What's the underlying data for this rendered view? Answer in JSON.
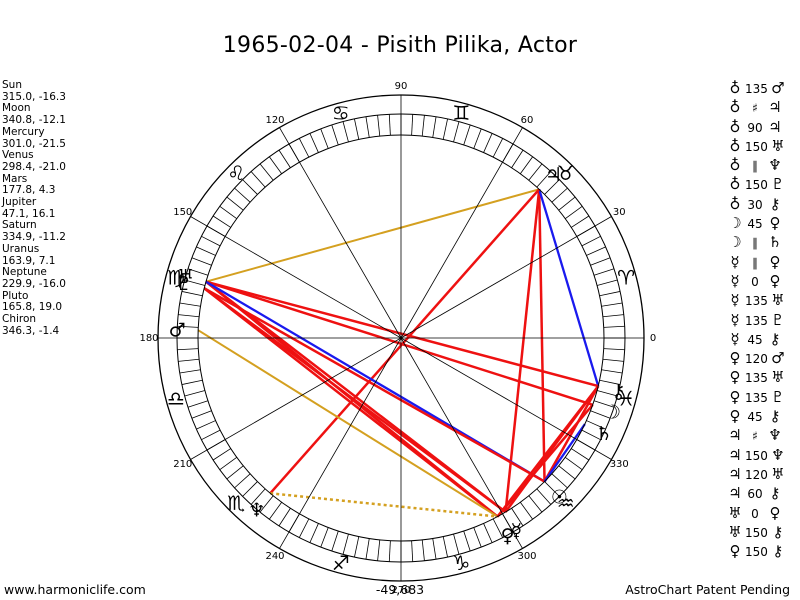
{
  "title": "1965-02-04 - Pisith Pilika, Actor",
  "planets": [
    {
      "name": "Sun",
      "coords": "315.0, -16.3"
    },
    {
      "name": "Moon",
      "coords": "340.8, -12.1"
    },
    {
      "name": "Mercury",
      "coords": "301.0, -21.5"
    },
    {
      "name": "Venus",
      "coords": "298.4, -21.0"
    },
    {
      "name": "Mars",
      "coords": "177.8, 4.3"
    },
    {
      "name": "Jupiter",
      "coords": "47.1, 16.1"
    },
    {
      "name": "Saturn",
      "coords": "334.9, -11.2"
    },
    {
      "name": "Uranus",
      "coords": "163.9, 7.1"
    },
    {
      "name": "Neptune",
      "coords": "229.9, -16.0"
    },
    {
      "name": "Pluto",
      "coords": "165.8, 19.0"
    },
    {
      "name": "Chiron",
      "coords": "346.3, -1.4"
    }
  ],
  "aspects": [
    {
      "p1": "♁",
      "aspect": "135",
      "p2": "♂"
    },
    {
      "p1": "♁",
      "aspect": "♯",
      "p2": "♃"
    },
    {
      "p1": "♁",
      "aspect": "90",
      "p2": "♃"
    },
    {
      "p1": "♁",
      "aspect": "150",
      "p2": "♅"
    },
    {
      "p1": "♁",
      "aspect": "∥",
      "p2": "♆"
    },
    {
      "p1": "♁",
      "aspect": "150",
      "p2": "♇"
    },
    {
      "p1": "♁",
      "aspect": "30",
      "p2": "⚷"
    },
    {
      "p1": "☽",
      "aspect": "45",
      "p2": "♀"
    },
    {
      "p1": "☽",
      "aspect": "∥",
      "p2": "♄"
    },
    {
      "p1": "☿",
      "aspect": "∥",
      "p2": "♀"
    },
    {
      "p1": "☿",
      "aspect": "0",
      "p2": "♀"
    },
    {
      "p1": "☿",
      "aspect": "135",
      "p2": "♅"
    },
    {
      "p1": "☿",
      "aspect": "135",
      "p2": "♇"
    },
    {
      "p1": "☿",
      "aspect": "45",
      "p2": "⚷"
    },
    {
      "p1": "♀",
      "aspect": "120",
      "p2": "♂"
    },
    {
      "p1": "♀",
      "aspect": "135",
      "p2": "♅"
    },
    {
      "p1": "♀",
      "aspect": "135",
      "p2": "♇"
    },
    {
      "p1": "♀",
      "aspect": "45",
      "p2": "⚷"
    },
    {
      "p1": "♃",
      "aspect": "♯",
      "p2": "♆"
    },
    {
      "p1": "♃",
      "aspect": "150",
      "p2": "♆"
    },
    {
      "p1": "♃",
      "aspect": "120",
      "p2": "♅"
    },
    {
      "p1": "♃",
      "aspect": "60",
      "p2": "⚷"
    },
    {
      "p1": "♅",
      "aspect": "0",
      "p2": "♀"
    },
    {
      "p1": "♅",
      "aspect": "150",
      "p2": "⚷"
    },
    {
      "p1": "♀",
      "aspect": "150",
      "p2": "⚷"
    }
  ],
  "footer": {
    "left": "www.harmoniclife.com",
    "center": "-49,683",
    "right": "AstroChart Patent Pending"
  },
  "colors": {
    "hard_aspect": "#ee1111",
    "trine_aspect": "#1a1aee",
    "minor_aspect": "#d4a020",
    "axis": "#000000"
  },
  "chart_data": {
    "type": "scatter",
    "subtype": "astrological wheel",
    "degree_labels": [
      "0",
      "30",
      "60",
      "90",
      "120",
      "150",
      "180",
      "210",
      "240",
      "270",
      "300",
      "330"
    ],
    "signs": [
      {
        "name": "Aries",
        "glyph": "♈"
      },
      {
        "name": "Taurus",
        "glyph": "♉"
      },
      {
        "name": "Gemini",
        "glyph": "♊"
      },
      {
        "name": "Cancer",
        "glyph": "♋"
      },
      {
        "name": "Leo",
        "glyph": "♌"
      },
      {
        "name": "Virgo",
        "glyph": "♍"
      },
      {
        "name": "Libra",
        "glyph": "♎"
      },
      {
        "name": "Scorpio",
        "glyph": "♏"
      },
      {
        "name": "Sagittarius",
        "glyph": "♐"
      },
      {
        "name": "Capricorn",
        "glyph": "♑"
      },
      {
        "name": "Aquarius",
        "glyph": "♒"
      },
      {
        "name": "Pisces",
        "glyph": "♓"
      }
    ],
    "bodies": [
      {
        "name": "Sun",
        "glyph": "☉",
        "lon": 315.0
      },
      {
        "name": "Moon",
        "glyph": "☽",
        "lon": 340.8
      },
      {
        "name": "Mercury",
        "glyph": "☿",
        "lon": 301.0
      },
      {
        "name": "Venus",
        "glyph": "♀",
        "lon": 298.4
      },
      {
        "name": "Mars",
        "glyph": "♂",
        "lon": 177.8
      },
      {
        "name": "Jupiter",
        "glyph": "♃",
        "lon": 47.1
      },
      {
        "name": "Saturn",
        "glyph": "♄",
        "lon": 334.9
      },
      {
        "name": "Uranus",
        "glyph": "♅",
        "lon": 163.9
      },
      {
        "name": "Neptune",
        "glyph": "♆",
        "lon": 229.9
      },
      {
        "name": "Pluto",
        "glyph": "♇",
        "lon": 165.8
      },
      {
        "name": "Chiron",
        "glyph": "⚷",
        "lon": 346.3
      }
    ],
    "aspect_lines": [
      {
        "from": "Jupiter",
        "to": "Uranus",
        "kind": "minor"
      },
      {
        "from": "Jupiter",
        "to": "Sun",
        "kind": "hard"
      },
      {
        "from": "Jupiter",
        "to": "Mercury",
        "kind": "hard"
      },
      {
        "from": "Jupiter",
        "to": "Chiron",
        "kind": "trine"
      },
      {
        "from": "Jupiter",
        "to": "Neptune",
        "kind": "hard"
      },
      {
        "from": "Uranus",
        "to": "Chiron",
        "kind": "hard"
      },
      {
        "from": "Uranus",
        "to": "Moon",
        "kind": "hard"
      },
      {
        "from": "Uranus",
        "to": "Venus",
        "kind": "hard"
      },
      {
        "from": "Uranus",
        "to": "Mercury",
        "kind": "hard"
      },
      {
        "from": "Uranus",
        "to": "Sun",
        "kind": "trine"
      },
      {
        "from": "Pluto",
        "to": "Venus",
        "kind": "hard"
      },
      {
        "from": "Pluto",
        "to": "Mercury",
        "kind": "hard"
      },
      {
        "from": "Pluto",
        "to": "Sun",
        "kind": "hard"
      },
      {
        "from": "Mars",
        "to": "Venus",
        "kind": "minor"
      },
      {
        "from": "Neptune",
        "to": "Venus",
        "kind": "minor-dotted"
      },
      {
        "from": "Sun",
        "to": "Chiron",
        "kind": "hard"
      },
      {
        "from": "Sun",
        "to": "Saturn",
        "kind": "trine"
      },
      {
        "from": "Moon",
        "to": "Venus",
        "kind": "hard"
      },
      {
        "from": "Chiron",
        "to": "Mercury",
        "kind": "hard"
      },
      {
        "from": "Chiron",
        "to": "Venus",
        "kind": "hard"
      }
    ]
  }
}
